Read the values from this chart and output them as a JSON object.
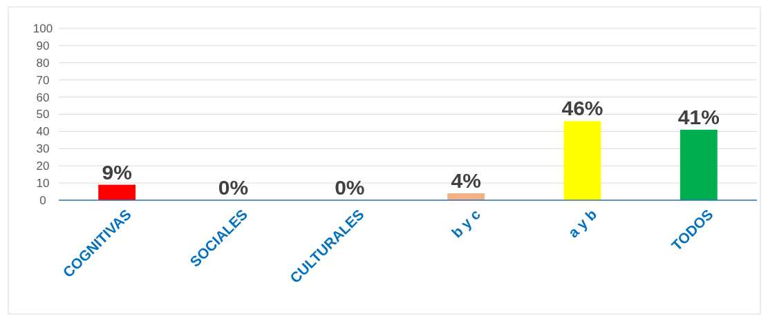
{
  "chart_data": {
    "type": "bar",
    "categories": [
      "COGNITIVAS",
      "SOCIALES",
      "CULTURALES",
      "b y c",
      "a y b",
      "TODOS"
    ],
    "values": [
      9,
      0,
      0,
      4,
      46,
      41
    ],
    "colors": [
      "#ff0000",
      "#ff0000",
      "#ff0000",
      "#f4b183",
      "#ffff00",
      "#00b050"
    ],
    "value_labels": [
      "9%",
      "0%",
      "0%",
      "4%",
      "46%",
      "41%"
    ],
    "ylim": [
      0,
      100
    ],
    "yticks": [
      0,
      10,
      20,
      30,
      40,
      50,
      60,
      70,
      80,
      90,
      100
    ],
    "grid": "y"
  }
}
